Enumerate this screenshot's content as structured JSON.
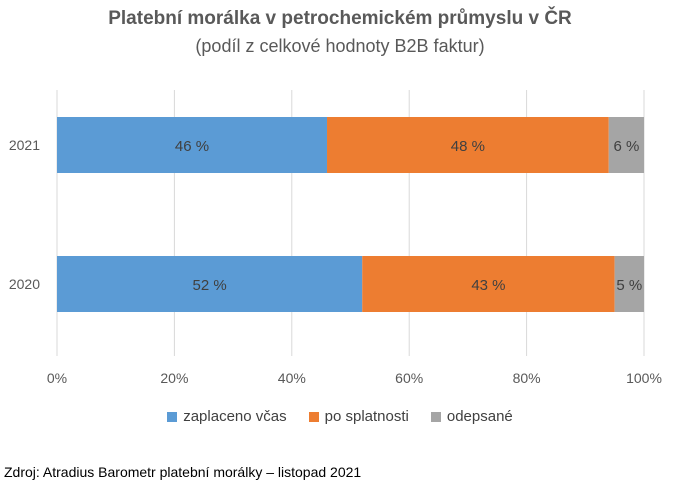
{
  "chart_data": {
    "type": "bar",
    "orientation": "horizontal",
    "stacked": true,
    "title": "Platební morálka v petrochemickém průmyslu v ČR",
    "subtitle": "(podíl z celkové hodnoty B2B faktur)",
    "categories": [
      "2021",
      "2020"
    ],
    "series": [
      {
        "name": "zaplaceno včas",
        "values": [
          46,
          52
        ],
        "labels": [
          "46 %",
          "52 %"
        ],
        "color": "#5B9BD5"
      },
      {
        "name": "po splatnosti",
        "values": [
          48,
          43
        ],
        "labels": [
          "48 %",
          "43 %"
        ],
        "color": "#ED7D31"
      },
      {
        "name": "odepsané",
        "values": [
          6,
          5
        ],
        "labels": [
          "6 %",
          "5 %"
        ],
        "color": "#A5A5A5"
      }
    ],
    "xlim": [
      0,
      100
    ],
    "x_ticks": [
      "0%",
      "20%",
      "40%",
      "60%",
      "80%",
      "100%"
    ],
    "grid": true,
    "legend_position": "bottom"
  },
  "source": "Zdroj: Atradius Barometr platební morálky – listopad 2021"
}
